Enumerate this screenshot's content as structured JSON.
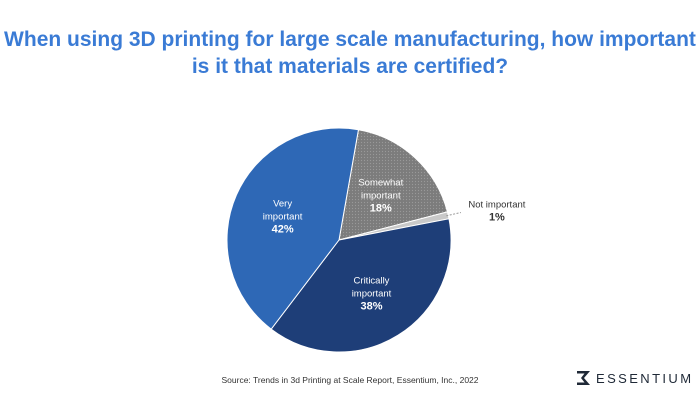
{
  "title_lines": [
    "When using 3D printing for large scale manufacturing, how important",
    "is it that materials are certified?"
  ],
  "chart_data": {
    "type": "pie",
    "slices": [
      {
        "label_lines": [
          "Somewhat",
          "important"
        ],
        "value": 18,
        "value_label": "18%",
        "color": "#7c7c7c",
        "pattern": "dotted"
      },
      {
        "label_lines": [
          "Not important"
        ],
        "value": 1,
        "value_label": "1%",
        "color": "#c9c9c9",
        "label_outside": true
      },
      {
        "label_lines": [
          "Critically",
          "important"
        ],
        "value": 38,
        "value_label": "38%",
        "color": "#1e3e78"
      },
      {
        "label_lines": [
          "Very",
          "important"
        ],
        "value": 42,
        "value_label": "42%",
        "color": "#2e68b6"
      }
    ]
  },
  "source": "Source: Trends in 3d Printing at Scale Report, Essentium, Inc., 2022",
  "brand": {
    "name": "ESSENTIUM",
    "icon": "essentium-logo-icon"
  }
}
